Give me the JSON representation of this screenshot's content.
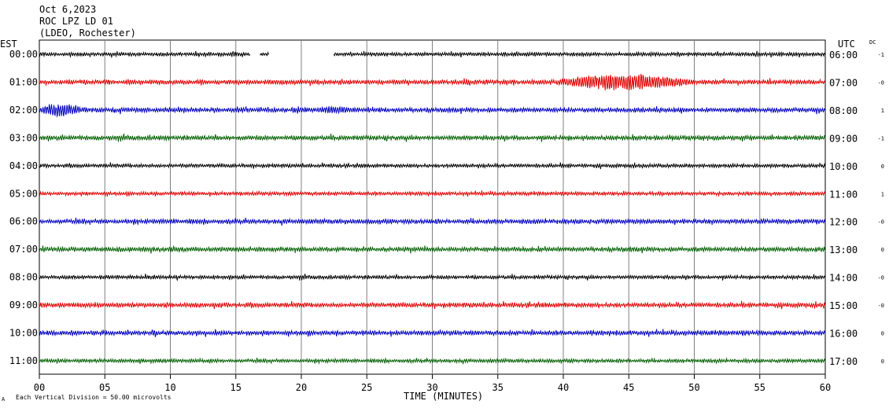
{
  "header": {
    "date": "Oct 6,2023",
    "station": "ROC LPZ LD 01",
    "network": "(LDEO, Rochester)"
  },
  "left_axis_label": "EST",
  "right_axis_label": "UTC",
  "dc_label": "DC",
  "footer": {
    "scale_note": "Each Vertical Division =   50.00 microvolts",
    "corner_mark": "A"
  },
  "chart_data": {
    "type": "line",
    "title": "",
    "xlabel": "TIME (MINUTES)",
    "ylabel": "",
    "xlim": [
      0,
      60
    ],
    "x_ticks": [
      "00",
      "05",
      "10",
      "15",
      "20",
      "25",
      "30",
      "35",
      "40",
      "45",
      "50",
      "55",
      "60"
    ],
    "grid": true,
    "colors": [
      "#000000",
      "#e00000",
      "#0000c0",
      "#006000"
    ],
    "rows": [
      {
        "est": "00:00",
        "utc": "06:00",
        "dc": "-1",
        "color": "#000000",
        "amplitude": 2,
        "gaps": [
          [
            16.1,
            16.8
          ],
          [
            17.5,
            22.5
          ]
        ],
        "events": [
          {
            "start": 14.5,
            "end": 16.1,
            "peak": 4
          }
        ]
      },
      {
        "est": "01:00",
        "utc": "07:00",
        "dc": "-0",
        "color": "#e00000",
        "amplitude": 2.5,
        "gaps": [],
        "events": [
          {
            "start": 39.5,
            "end": 60,
            "peak": 11
          }
        ]
      },
      {
        "est": "02:00",
        "utc": "08:00",
        "dc": "1",
        "color": "#0000c0",
        "amplitude": 2.5,
        "gaps": [],
        "events": [
          {
            "start": 0,
            "end": 6.5,
            "peak": 9
          },
          {
            "start": 21,
            "end": 27,
            "peak": 5
          }
        ]
      },
      {
        "est": "03:00",
        "utc": "09:00",
        "dc": "-1",
        "color": "#006000",
        "amplitude": 2.5,
        "gaps": [],
        "events": []
      },
      {
        "est": "04:00",
        "utc": "10:00",
        "dc": "0",
        "color": "#000000",
        "amplitude": 2,
        "gaps": [],
        "events": []
      },
      {
        "est": "05:00",
        "utc": "11:00",
        "dc": "1",
        "color": "#e00000",
        "amplitude": 2,
        "gaps": [],
        "events": []
      },
      {
        "est": "06:00",
        "utc": "12:00",
        "dc": "-0",
        "color": "#0000c0",
        "amplitude": 2.5,
        "gaps": [],
        "events": []
      },
      {
        "est": "07:00",
        "utc": "13:00",
        "dc": "0",
        "color": "#006000",
        "amplitude": 2.5,
        "gaps": [],
        "events": []
      },
      {
        "est": "08:00",
        "utc": "14:00",
        "dc": "-0",
        "color": "#000000",
        "amplitude": 2,
        "gaps": [],
        "events": []
      },
      {
        "est": "09:00",
        "utc": "15:00",
        "dc": "-0",
        "color": "#e00000",
        "amplitude": 2.5,
        "gaps": [],
        "events": []
      },
      {
        "est": "10:00",
        "utc": "16:00",
        "dc": "0",
        "color": "#0000c0",
        "amplitude": 2.5,
        "gaps": [],
        "events": []
      },
      {
        "est": "11:00",
        "utc": "17:00",
        "dc": "0",
        "color": "#006000",
        "amplitude": 2,
        "gaps": [],
        "events": []
      }
    ]
  }
}
